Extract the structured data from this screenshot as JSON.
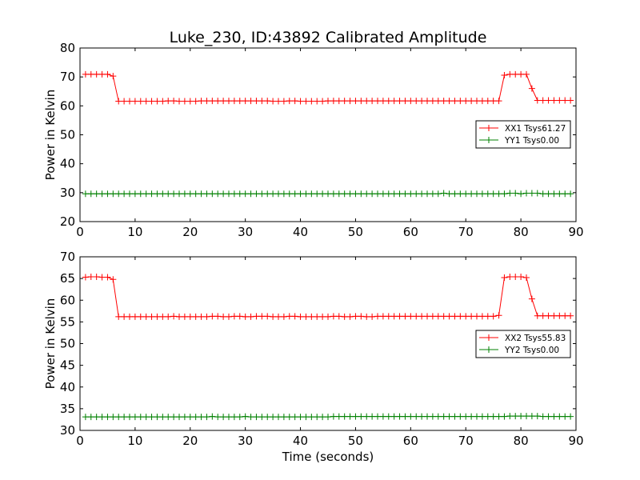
{
  "figure": {
    "title": "Luke_230, ID:43892 Calibrated Amplitude"
  },
  "colors": {
    "xx": "#ff0000",
    "yy": "#008000",
    "axes": "#000000",
    "background": "#ffffff"
  },
  "chart_data": [
    {
      "type": "line",
      "title": "Luke_230, ID:43892 Calibrated Amplitude",
      "xlabel": "",
      "ylabel": "Power in Kelvin",
      "xlim": [
        0,
        90
      ],
      "ylim": [
        20,
        80
      ],
      "xticks": [
        0,
        10,
        20,
        30,
        40,
        50,
        60,
        70,
        80,
        90
      ],
      "yticks": [
        20,
        30,
        40,
        50,
        60,
        70,
        80
      ],
      "marker": "+",
      "grid": false,
      "legend_position": "center-right",
      "series": [
        {
          "name": "XX1 Tsys61.27",
          "color": "#ff0000",
          "x": [
            1,
            2,
            3,
            4,
            5,
            6,
            7,
            8,
            9,
            10,
            11,
            12,
            13,
            14,
            15,
            16,
            17,
            18,
            19,
            20,
            21,
            22,
            23,
            24,
            25,
            26,
            27,
            28,
            29,
            30,
            31,
            32,
            33,
            34,
            35,
            36,
            37,
            38,
            39,
            40,
            41,
            42,
            43,
            44,
            45,
            46,
            47,
            48,
            49,
            50,
            51,
            52,
            53,
            54,
            55,
            56,
            57,
            58,
            59,
            60,
            61,
            62,
            63,
            64,
            65,
            66,
            67,
            68,
            69,
            70,
            71,
            72,
            73,
            74,
            75,
            76,
            77,
            78,
            79,
            80,
            81,
            82,
            83,
            84,
            85,
            86,
            87,
            88,
            89
          ],
          "y": [
            70.9,
            70.9,
            70.9,
            70.9,
            70.9,
            70.3,
            61.6,
            61.6,
            61.6,
            61.6,
            61.6,
            61.6,
            61.6,
            61.6,
            61.6,
            61.7,
            61.7,
            61.6,
            61.6,
            61.6,
            61.6,
            61.7,
            61.7,
            61.7,
            61.7,
            61.7,
            61.7,
            61.7,
            61.7,
            61.7,
            61.7,
            61.7,
            61.7,
            61.7,
            61.6,
            61.6,
            61.6,
            61.7,
            61.7,
            61.6,
            61.6,
            61.6,
            61.6,
            61.6,
            61.7,
            61.7,
            61.7,
            61.7,
            61.7,
            61.7,
            61.7,
            61.7,
            61.7,
            61.7,
            61.7,
            61.7,
            61.7,
            61.7,
            61.7,
            61.7,
            61.7,
            61.7,
            61.7,
            61.7,
            61.7,
            61.7,
            61.7,
            61.7,
            61.7,
            61.7,
            61.7,
            61.7,
            61.7,
            61.7,
            61.7,
            61.7,
            70.6,
            70.9,
            70.9,
            70.9,
            70.9,
            66.0,
            61.9,
            61.9,
            61.9,
            61.9,
            61.9,
            61.9,
            61.9
          ]
        },
        {
          "name": "YY1 Tsys0.00",
          "color": "#008000",
          "x": [
            1,
            2,
            3,
            4,
            5,
            6,
            7,
            8,
            9,
            10,
            11,
            12,
            13,
            14,
            15,
            16,
            17,
            18,
            19,
            20,
            21,
            22,
            23,
            24,
            25,
            26,
            27,
            28,
            29,
            30,
            31,
            32,
            33,
            34,
            35,
            36,
            37,
            38,
            39,
            40,
            41,
            42,
            43,
            44,
            45,
            46,
            47,
            48,
            49,
            50,
            51,
            52,
            53,
            54,
            55,
            56,
            57,
            58,
            59,
            60,
            61,
            62,
            63,
            64,
            65,
            66,
            67,
            68,
            69,
            70,
            71,
            72,
            73,
            74,
            75,
            76,
            77,
            78,
            79,
            80,
            81,
            82,
            83,
            84,
            85,
            86,
            87,
            88,
            89
          ],
          "y": [
            29.6,
            29.6,
            29.6,
            29.6,
            29.6,
            29.6,
            29.6,
            29.6,
            29.6,
            29.6,
            29.6,
            29.6,
            29.6,
            29.6,
            29.6,
            29.6,
            29.6,
            29.6,
            29.6,
            29.6,
            29.6,
            29.6,
            29.6,
            29.6,
            29.6,
            29.6,
            29.6,
            29.6,
            29.6,
            29.6,
            29.6,
            29.6,
            29.6,
            29.6,
            29.6,
            29.6,
            29.6,
            29.6,
            29.6,
            29.6,
            29.6,
            29.6,
            29.6,
            29.6,
            29.6,
            29.6,
            29.6,
            29.6,
            29.6,
            29.6,
            29.6,
            29.6,
            29.6,
            29.6,
            29.6,
            29.6,
            29.6,
            29.6,
            29.6,
            29.6,
            29.6,
            29.6,
            29.6,
            29.6,
            29.6,
            29.8,
            29.6,
            29.6,
            29.6,
            29.6,
            29.6,
            29.6,
            29.6,
            29.6,
            29.6,
            29.6,
            29.6,
            29.8,
            29.8,
            29.6,
            29.8,
            29.8,
            29.8,
            29.6,
            29.6,
            29.6,
            29.6,
            29.6,
            29.6
          ]
        }
      ]
    },
    {
      "type": "line",
      "title": "",
      "xlabel": "Time (seconds)",
      "ylabel": "Power in Kelvin",
      "xlim": [
        0,
        90
      ],
      "ylim": [
        30,
        70
      ],
      "xticks": [
        0,
        10,
        20,
        30,
        40,
        50,
        60,
        70,
        80,
        90
      ],
      "yticks": [
        30,
        35,
        40,
        45,
        50,
        55,
        60,
        65,
        70
      ],
      "marker": "+",
      "grid": false,
      "legend_position": "center-right",
      "series": [
        {
          "name": "XX2 Tsys55.83",
          "color": "#ff0000",
          "x": [
            1,
            2,
            3,
            4,
            5,
            6,
            7,
            8,
            9,
            10,
            11,
            12,
            13,
            14,
            15,
            16,
            17,
            18,
            19,
            20,
            21,
            22,
            23,
            24,
            25,
            26,
            27,
            28,
            29,
            30,
            31,
            32,
            33,
            34,
            35,
            36,
            37,
            38,
            39,
            40,
            41,
            42,
            43,
            44,
            45,
            46,
            47,
            48,
            49,
            50,
            51,
            52,
            53,
            54,
            55,
            56,
            57,
            58,
            59,
            60,
            61,
            62,
            63,
            64,
            65,
            66,
            67,
            68,
            69,
            70,
            71,
            72,
            73,
            74,
            75,
            76,
            77,
            78,
            79,
            80,
            81,
            82,
            83,
            84,
            85,
            86,
            87,
            88,
            89
          ],
          "y": [
            65.3,
            65.4,
            65.4,
            65.3,
            65.3,
            64.8,
            56.2,
            56.2,
            56.2,
            56.2,
            56.2,
            56.2,
            56.2,
            56.2,
            56.2,
            56.2,
            56.3,
            56.2,
            56.2,
            56.2,
            56.2,
            56.2,
            56.2,
            56.3,
            56.3,
            56.2,
            56.2,
            56.3,
            56.3,
            56.2,
            56.2,
            56.3,
            56.3,
            56.3,
            56.2,
            56.2,
            56.2,
            56.3,
            56.3,
            56.2,
            56.2,
            56.2,
            56.2,
            56.2,
            56.2,
            56.3,
            56.3,
            56.2,
            56.2,
            56.3,
            56.3,
            56.2,
            56.2,
            56.3,
            56.3,
            56.3,
            56.3,
            56.3,
            56.3,
            56.3,
            56.3,
            56.3,
            56.3,
            56.3,
            56.3,
            56.3,
            56.3,
            56.3,
            56.3,
            56.3,
            56.3,
            56.3,
            56.3,
            56.3,
            56.3,
            56.5,
            65.2,
            65.4,
            65.4,
            65.4,
            65.2,
            60.3,
            56.4,
            56.4,
            56.4,
            56.4,
            56.4,
            56.4,
            56.4
          ]
        },
        {
          "name": "YY2 Tsys0.00",
          "color": "#008000",
          "x": [
            1,
            2,
            3,
            4,
            5,
            6,
            7,
            8,
            9,
            10,
            11,
            12,
            13,
            14,
            15,
            16,
            17,
            18,
            19,
            20,
            21,
            22,
            23,
            24,
            25,
            26,
            27,
            28,
            29,
            30,
            31,
            32,
            33,
            34,
            35,
            36,
            37,
            38,
            39,
            40,
            41,
            42,
            43,
            44,
            45,
            46,
            47,
            48,
            49,
            50,
            51,
            52,
            53,
            54,
            55,
            56,
            57,
            58,
            59,
            60,
            61,
            62,
            63,
            64,
            65,
            66,
            67,
            68,
            69,
            70,
            71,
            72,
            73,
            74,
            75,
            76,
            77,
            78,
            79,
            80,
            81,
            82,
            83,
            84,
            85,
            86,
            87,
            88,
            89
          ],
          "y": [
            33.1,
            33.1,
            33.1,
            33.1,
            33.1,
            33.1,
            33.1,
            33.1,
            33.1,
            33.1,
            33.1,
            33.1,
            33.1,
            33.1,
            33.1,
            33.1,
            33.1,
            33.1,
            33.1,
            33.1,
            33.1,
            33.1,
            33.1,
            33.2,
            33.1,
            33.1,
            33.1,
            33.1,
            33.1,
            33.2,
            33.1,
            33.1,
            33.1,
            33.1,
            33.1,
            33.1,
            33.1,
            33.1,
            33.1,
            33.1,
            33.1,
            33.1,
            33.1,
            33.1,
            33.1,
            33.2,
            33.2,
            33.2,
            33.2,
            33.2,
            33.2,
            33.2,
            33.2,
            33.2,
            33.2,
            33.2,
            33.2,
            33.2,
            33.2,
            33.2,
            33.2,
            33.2,
            33.2,
            33.2,
            33.2,
            33.2,
            33.2,
            33.2,
            33.2,
            33.2,
            33.2,
            33.2,
            33.2,
            33.2,
            33.2,
            33.2,
            33.2,
            33.3,
            33.3,
            33.3,
            33.3,
            33.3,
            33.3,
            33.2,
            33.2,
            33.2,
            33.2,
            33.2,
            33.2
          ]
        }
      ]
    }
  ]
}
